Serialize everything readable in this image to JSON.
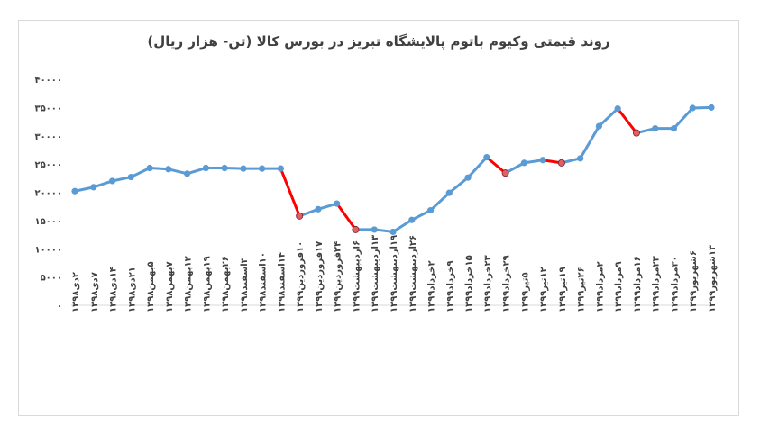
{
  "chart_data": {
    "type": "line",
    "title": "روند قیمتی وکیوم باتوم پالایشگاه تبریز در بورس کالا (تن- هزار ریال)",
    "ylim": [
      0,
      40000
    ],
    "yticks": [
      "۰",
      "۵۰۰۰",
      "۱۰۰۰۰",
      "۱۵۰۰۰",
      "۲۰۰۰۰",
      "۲۵۰۰۰",
      "۳۰۰۰۰",
      "۳۵۰۰۰",
      "۴۰۰۰۰"
    ],
    "grid": false,
    "colors": {
      "line": "#5b9bd5",
      "drop": "#ff0000",
      "marker": "#5b9bd5",
      "drop_marker": "#e06060"
    },
    "categories": [
      "۲دی۱۳۹۸",
      "۷دی۱۳۹۸",
      "۱۴دی۱۳۹۸",
      "۲۱دی۱۳۹۸",
      "۵بهمن۱۳۹۸",
      "۷بهمن۱۳۹۸",
      "۱۲بهمن۱۳۹۸",
      "۱۹بهمن۱۳۹۸",
      "۲۶بهمن۱۳۹۸",
      "۳اسفند۱۳۹۸",
      "۱۰اسفند۱۳۹۸",
      "۱۴اسفند۱۳۹۸",
      "۱۰فروردین۱۳۹۹",
      "۱۷فروردین۱۳۹۹",
      "۲۴فروردین۱۳۹۹",
      "۶اردیبهشت۱۳۹۹",
      "۱۳اردیبهشت۱۳۹۹",
      "۱۹اردیبهشت۱۳۹۹",
      "۲۶اردیبهشت۱۳۹۹",
      "۲خرداد۱۳۹۹",
      "۹خرداد۱۳۹۹",
      "۱۵خرداد۱۳۹۹",
      "۲۳خرداد۱۳۹۹",
      "۲۹خرداد۱۳۹۹",
      "۵تیر۱۳۹۹",
      "۱۲تیر۱۳۹۹",
      "۱۹تیر۱۳۹۹",
      "۲۶تیر۱۳۹۹",
      "۲مرداد۱۳۹۹",
      "۹مرداد۱۳۹۹",
      "۱۶مرداد۱۳۹۹",
      "۲۳مرداد۱۳۹۹",
      "۳۰مرداد۱۳۹۹",
      "۶شهریور۱۳۹۹",
      "۱۳شهریور۱۳۹۹"
    ],
    "values": [
      20200,
      20900,
      22000,
      22700,
      24300,
      24100,
      23300,
      24300,
      24300,
      24200,
      24200,
      24200,
      15800,
      17000,
      18000,
      13400,
      13400,
      13000,
      15100,
      16800,
      19900,
      22600,
      26200,
      23400,
      25200,
      25700,
      25200,
      26000,
      31700,
      34800,
      30500,
      31300,
      31300,
      34900,
      35000
    ],
    "drop_indices": [
      12,
      15,
      23,
      26,
      30
    ]
  }
}
